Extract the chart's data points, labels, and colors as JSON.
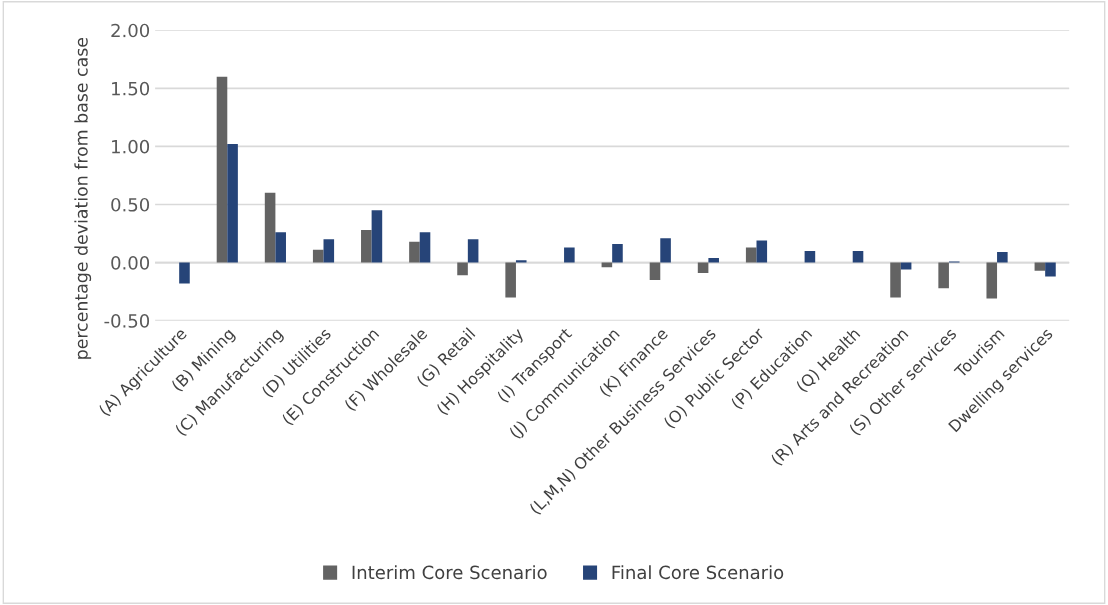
{
  "chart_data": {
    "type": "bar",
    "ylabel": "percentage deviation from base case",
    "categories": [
      "(A) Agriculture",
      "(B) Mining",
      "(C) Manufacturing",
      "(D) Utilities",
      "(E) Construction",
      "(F) Wholesale",
      "(G) Retail",
      "(H) Hospitality",
      "(I) Transport",
      "(J) Communication",
      "(K) Finance",
      "(L,M,N) Other Business Services",
      "(O) Public Sector",
      "(P) Education",
      "(Q) Health",
      "(R) Arts and Recreation",
      "(S) Other services",
      "Tourism",
      "Dwelling services"
    ],
    "series": [
      {
        "name": "Interim Core Scenario",
        "color": "#636363",
        "values": [
          null,
          1.6,
          0.6,
          0.11,
          0.28,
          0.18,
          -0.11,
          -0.3,
          null,
          -0.04,
          -0.15,
          -0.09,
          0.13,
          null,
          null,
          -0.3,
          -0.22,
          -0.31,
          -0.07
        ]
      },
      {
        "name": "Final Core Scenario",
        "color": "#264478",
        "values": [
          -0.18,
          1.02,
          0.26,
          0.2,
          0.45,
          0.26,
          0.2,
          0.02,
          0.13,
          0.16,
          0.21,
          0.04,
          0.19,
          0.1,
          0.1,
          -0.06,
          0.01,
          0.09,
          -0.12
        ]
      }
    ],
    "ylim": [
      -0.5,
      2.0
    ],
    "yticks": [
      {
        "value": -0.5,
        "label": "-0.50"
      },
      {
        "value": 0,
        "label": "0.00"
      },
      {
        "value": 0.5,
        "label": "0.50"
      },
      {
        "value": 1.0,
        "label": "1.00"
      },
      {
        "value": 1.5,
        "label": "1.50"
      },
      {
        "value": 2.0,
        "label": "2.00"
      }
    ],
    "grid": "y",
    "legend": "bottom"
  }
}
